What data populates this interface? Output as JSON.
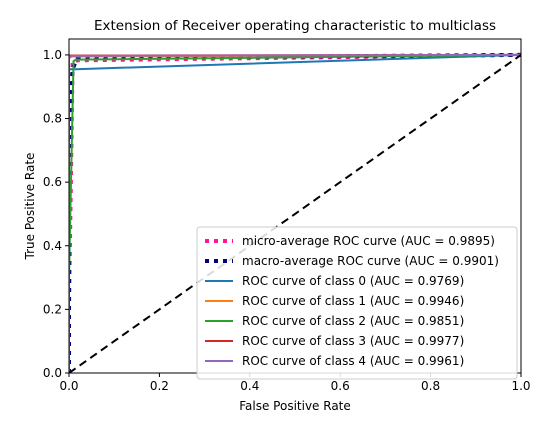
{
  "chart_data": {
    "type": "line",
    "title": "Extension of Receiver operating characteristic to multiclass",
    "xlabel": "False Positive Rate",
    "ylabel": "True Positive Rate",
    "xlim": [
      0.0,
      1.0
    ],
    "ylim": [
      0.0,
      1.05
    ],
    "xticks": [
      0.0,
      0.2,
      0.4,
      0.6,
      0.8,
      1.0
    ],
    "yticks": [
      0.0,
      0.2,
      0.4,
      0.6,
      0.8,
      1.0
    ],
    "xtick_labels": [
      "0.0",
      "0.2",
      "0.4",
      "0.6",
      "0.8",
      "1.0"
    ],
    "ytick_labels": [
      "0.0",
      "0.2",
      "0.4",
      "0.6",
      "0.8",
      "1.0"
    ],
    "grid": false,
    "legend_position": "lower-right",
    "series": [
      {
        "name": "micro-average ROC curve (AUC = 0.9895)",
        "color": "#ff1493",
        "style": "dotted",
        "x": [
          0.0,
          0.0,
          0.008,
          0.02,
          1.0
        ],
        "y": [
          0.0,
          0.2,
          0.98,
          0.983,
          1.0
        ]
      },
      {
        "name": "macro-average ROC curve (AUC = 0.9901)",
        "color": "#000080",
        "style": "dotted",
        "x": [
          0.0,
          0.0,
          0.008,
          0.015,
          0.02,
          1.0
        ],
        "y": [
          0.0,
          0.8,
          0.955,
          0.98,
          0.99,
          1.0
        ]
      },
      {
        "name": "ROC curve of class 0 (AUC = 0.9769)",
        "color": "#1f77b4",
        "style": "solid",
        "x": [
          0.0,
          0.0,
          0.015,
          1.0
        ],
        "y": [
          0.0,
          0.955,
          0.955,
          1.0
        ]
      },
      {
        "name": "ROC curve of class 1 (AUC = 0.9946)",
        "color": "#ff7f0e",
        "style": "solid",
        "x": [
          0.0,
          0.0,
          0.006,
          1.0
        ],
        "y": [
          0.0,
          0.99,
          0.995,
          1.0
        ]
      },
      {
        "name": "ROC curve of class 2 (AUC = 0.9851)",
        "color": "#2ca02c",
        "style": "solid",
        "x": [
          0.0,
          0.0,
          0.01,
          0.015,
          1.0
        ],
        "y": [
          0.0,
          0.3,
          0.98,
          0.985,
          1.0
        ]
      },
      {
        "name": "ROC curve of class 3 (AUC = 0.9977)",
        "color": "#d62728",
        "style": "solid",
        "x": [
          0.0,
          0.0,
          1.0
        ],
        "y": [
          0.0,
          0.998,
          1.0
        ]
      },
      {
        "name": "ROC curve of class 4 (AUC = 0.9961)",
        "color": "#9467bd",
        "style": "solid",
        "x": [
          0.0,
          0.0,
          0.004,
          1.0
        ],
        "y": [
          0.0,
          0.99,
          0.997,
          1.0
        ]
      }
    ],
    "reference_line": {
      "color": "#000000",
      "style": "dashed",
      "x": [
        0.0,
        1.0
      ],
      "y": [
        0.0,
        1.0
      ]
    }
  }
}
